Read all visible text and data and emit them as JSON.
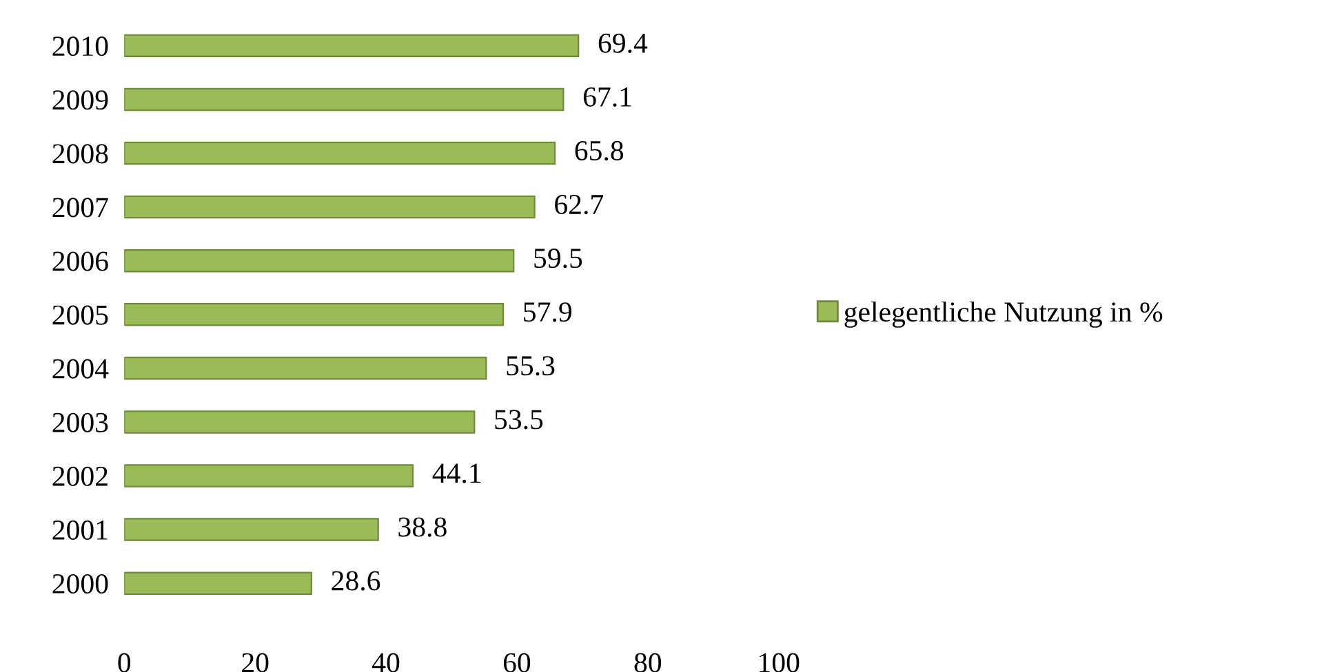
{
  "chart_data": {
    "type": "bar",
    "orientation": "horizontal",
    "categories": [
      "2010",
      "2009",
      "2008",
      "2007",
      "2006",
      "2005",
      "2004",
      "2003",
      "2002",
      "2001",
      "2000"
    ],
    "series": [
      {
        "name": "gelegentliche Nutzung in %",
        "color": "#9bbb59",
        "values": [
          69.4,
          67.1,
          65.8,
          62.7,
          59.5,
          57.9,
          55.3,
          53.5,
          44.1,
          38.8,
          28.6
        ]
      }
    ],
    "xlim": [
      0,
      100
    ],
    "xticks": [
      0,
      20,
      40,
      60,
      80,
      100
    ],
    "data_labels": true,
    "grid": false,
    "legend": "right"
  }
}
